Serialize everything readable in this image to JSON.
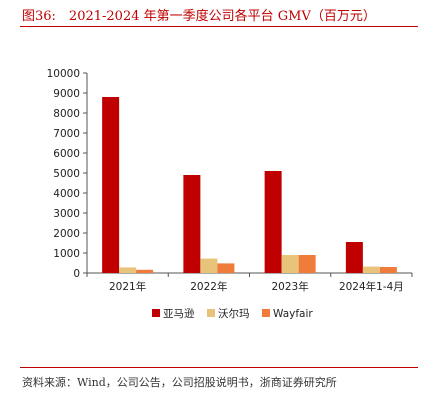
{
  "figure": {
    "title": "图36:　2021-2024 年第一季度公司各平台 GMV（百万元）",
    "source": "资料来源：Wind，公司公告，公司招股说明书，浙商证券研究所"
  },
  "colors": {
    "accent": "#c00000",
    "series_0": "#c00000",
    "series_1": "#e8c47a",
    "series_2": "#ef7c3a",
    "axis": "#555555"
  },
  "chart_data": {
    "type": "bar",
    "categories": [
      "2021年",
      "2022年",
      "2023年",
      "2024年1-4月"
    ],
    "series": [
      {
        "name": "亚马逊",
        "values": [
          8800,
          4900,
          5100,
          1550
        ]
      },
      {
        "name": "沃尔玛",
        "values": [
          280,
          720,
          900,
          320
        ]
      },
      {
        "name": "Wayfair",
        "values": [
          160,
          480,
          900,
          300
        ]
      }
    ],
    "title": "",
    "xlabel": "",
    "ylabel": "",
    "ylim": [
      0,
      10000
    ],
    "yticks": [
      0,
      1000,
      2000,
      3000,
      4000,
      5000,
      6000,
      7000,
      8000,
      9000,
      10000
    ],
    "grid": false,
    "legend_position": "bottom"
  }
}
